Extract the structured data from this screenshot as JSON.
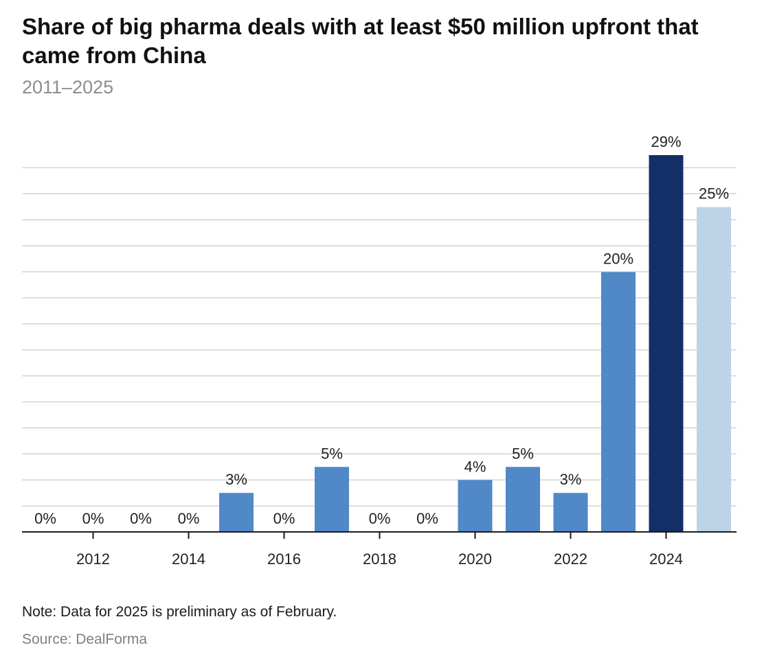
{
  "chart_data": {
    "type": "bar",
    "title": "Share of big pharma deals with at least $50 million upfront that came from China",
    "subtitle": "2011–2025",
    "categories": [
      "2011",
      "2012",
      "2013",
      "2014",
      "2015",
      "2016",
      "2017",
      "2018",
      "2019",
      "2020",
      "2021",
      "2022",
      "2023",
      "2024",
      "2025"
    ],
    "values": [
      0,
      0,
      0,
      0,
      3,
      0,
      5,
      0,
      0,
      4,
      5,
      3,
      20,
      29,
      25
    ],
    "value_labels": [
      "0%",
      "0%",
      "0%",
      "0%",
      "3%",
      "0%",
      "5%",
      "0%",
      "0%",
      "4%",
      "5%",
      "3%",
      "20%",
      "29%",
      "25%"
    ],
    "x_tick_labels": [
      "2012",
      "2014",
      "2016",
      "2018",
      "2020",
      "2022",
      "2024"
    ],
    "ylim": [
      0,
      28
    ],
    "grid": true,
    "y_axis_labels_shown": false,
    "bar_colors": {
      "default": "#5088c8",
      "highlight": "#142f68",
      "preliminary": "#bdd3e8"
    },
    "highlight_category": "2024",
    "preliminary_category": "2025",
    "note": "Note: Data for 2025 is preliminary as of February.",
    "source": "Source: DealForma"
  }
}
